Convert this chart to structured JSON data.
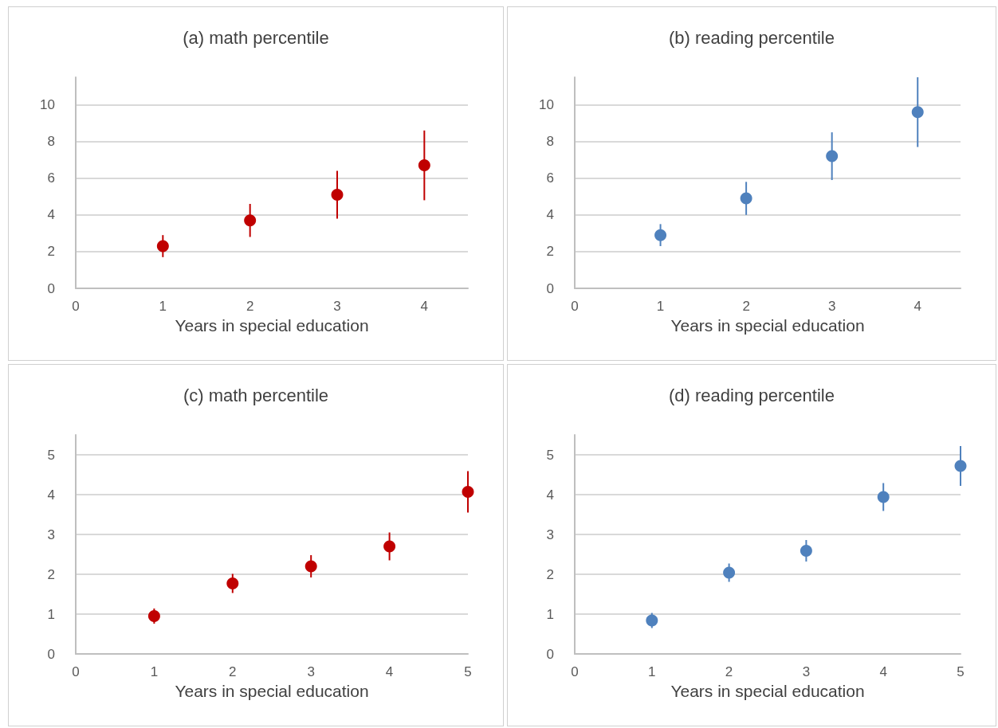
{
  "chart_data": [
    {
      "type": "scatter",
      "title": "(a) math percentile",
      "xlabel": "Years in special education",
      "x": [
        1,
        2,
        3,
        4
      ],
      "series": [
        {
          "color": "#c00000",
          "values": [
            2.3,
            3.7,
            5.1,
            6.7
          ],
          "errors": [
            0.6,
            0.9,
            1.3,
            1.9
          ]
        }
      ],
      "xlim": [
        0,
        4.5
      ],
      "xticks": [
        0,
        1,
        2,
        3,
        4
      ],
      "ylim": [
        0,
        11.5
      ],
      "yticks": [
        0,
        2,
        4,
        6,
        8,
        10
      ],
      "grid": "y",
      "marker": "circle"
    },
    {
      "type": "scatter",
      "title": "(b) reading percentile",
      "xlabel": "Years in special education",
      "x": [
        1,
        2,
        3,
        4
      ],
      "series": [
        {
          "color": "#4f81bd",
          "values": [
            2.9,
            4.9,
            7.2,
            9.6
          ],
          "errors": [
            0.6,
            0.9,
            1.3,
            1.9
          ]
        }
      ],
      "xlim": [
        0,
        4.5
      ],
      "xticks": [
        0,
        1,
        2,
        3,
        4
      ],
      "ylim": [
        0,
        11.5
      ],
      "yticks": [
        0,
        2,
        4,
        6,
        8,
        10
      ],
      "grid": "y",
      "marker": "circle"
    },
    {
      "type": "scatter",
      "title": "(c) math percentile",
      "xlabel": "Years in special education",
      "x": [
        1,
        2,
        3,
        4,
        5
      ],
      "series": [
        {
          "color": "#c00000",
          "values": [
            0.95,
            1.77,
            2.2,
            2.7,
            4.07
          ],
          "errors": [
            0.19,
            0.24,
            0.28,
            0.35,
            0.52
          ]
        }
      ],
      "xlim": [
        0,
        5
      ],
      "xticks": [
        0,
        1,
        2,
        3,
        4,
        5
      ],
      "ylim": [
        0,
        5.5
      ],
      "yticks": [
        0,
        1,
        2,
        3,
        4,
        5
      ],
      "grid": "y",
      "marker": "circle"
    },
    {
      "type": "scatter",
      "title": "(d) reading percentile",
      "xlabel": "Years in special education",
      "x": [
        1,
        2,
        3,
        4,
        5
      ],
      "series": [
        {
          "color": "#4f81bd",
          "values": [
            0.84,
            2.04,
            2.59,
            3.94,
            4.72
          ],
          "errors": [
            0.19,
            0.23,
            0.27,
            0.35,
            0.5
          ]
        }
      ],
      "xlim": [
        0,
        5
      ],
      "xticks": [
        0,
        1,
        2,
        3,
        4,
        5
      ],
      "ylim": [
        0,
        5.5
      ],
      "yticks": [
        0,
        1,
        2,
        3,
        4,
        5
      ],
      "grid": "y",
      "marker": "circle"
    }
  ]
}
